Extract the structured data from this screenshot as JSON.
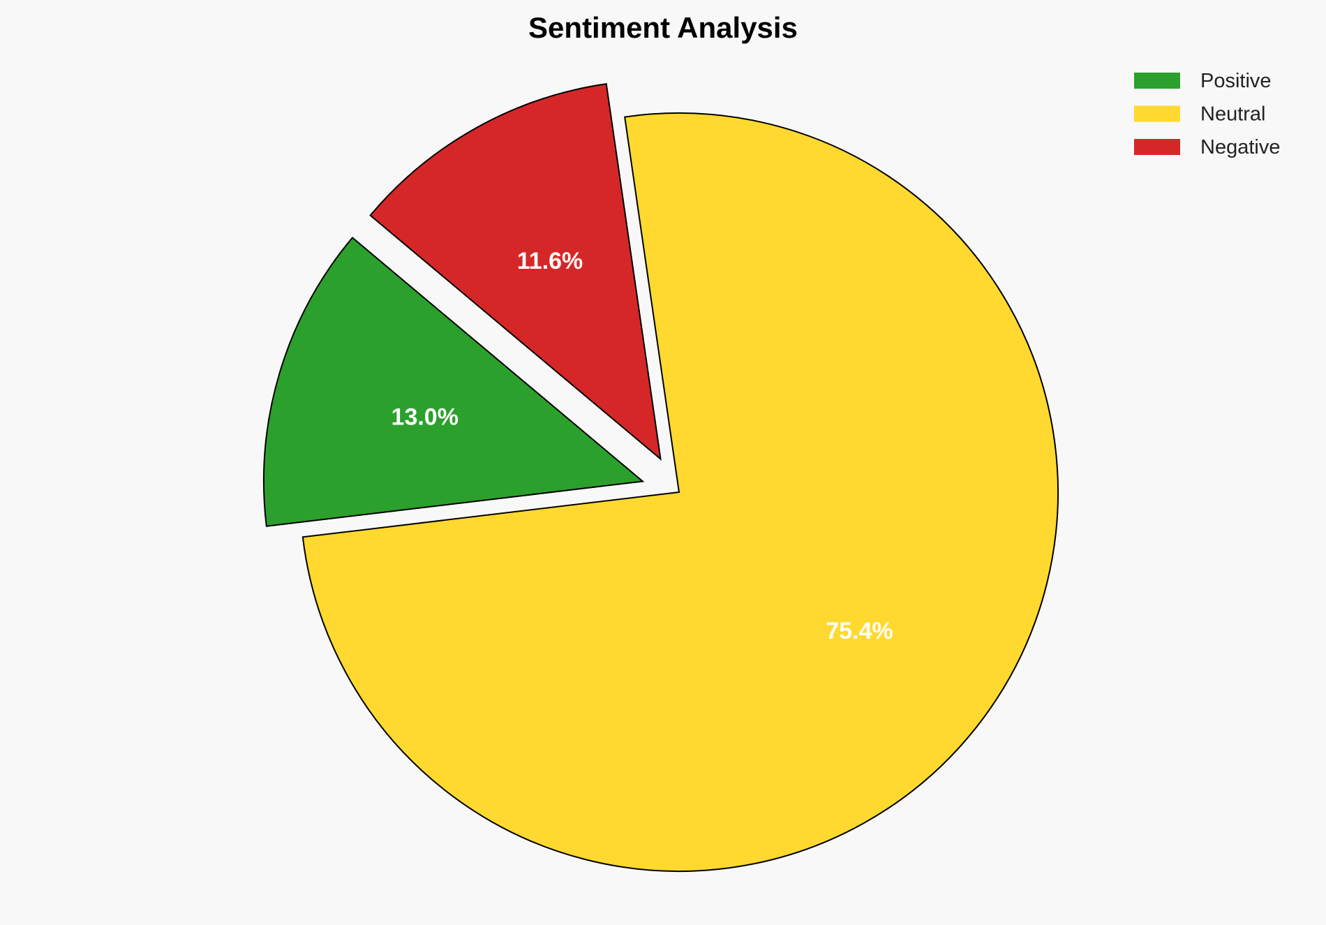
{
  "chart_data": {
    "type": "pie",
    "title": "Sentiment Analysis",
    "categories": [
      "Positive",
      "Neutral",
      "Negative"
    ],
    "values": [
      13.0,
      75.4,
      11.6
    ],
    "labels": [
      "13.0%",
      "75.4%",
      "11.6%"
    ],
    "colors": [
      "#2ca02c",
      "#ffd92f",
      "#d62728"
    ],
    "explode": [
      0.1,
      0,
      0.1
    ],
    "start_angle_deg": 140,
    "direction": "counterclockwise",
    "legend_position": "top-right",
    "edge_color": "#000000",
    "label_color": "#ffffff",
    "background": "#f8f8f8"
  }
}
